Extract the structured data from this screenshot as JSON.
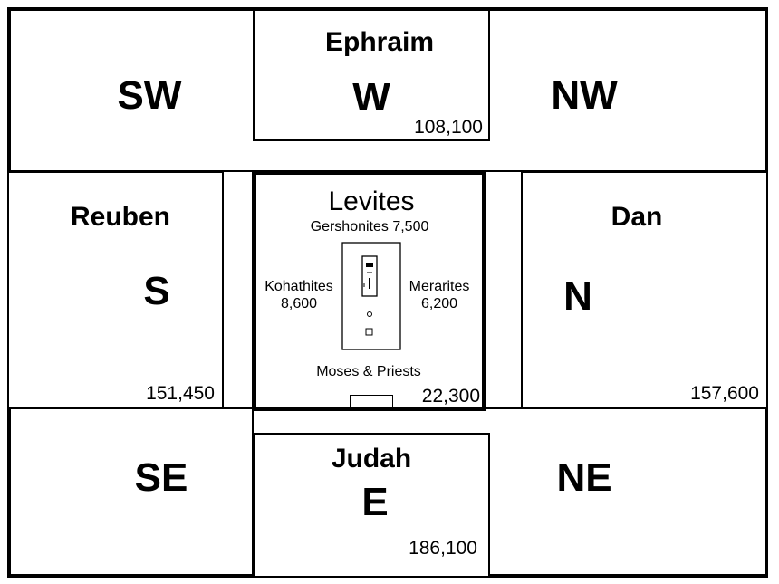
{
  "camp": {
    "corners": {
      "sw": "SW",
      "nw": "NW",
      "se": "SE",
      "ne": "NE"
    },
    "west": {
      "tribe": "Ephraim",
      "direction": "W",
      "count": "108,100"
    },
    "south": {
      "tribe": "Reuben",
      "direction": "S",
      "count": "151,450"
    },
    "north": {
      "tribe": "Dan",
      "direction": "N",
      "count": "157,600"
    },
    "east": {
      "tribe": "Judah",
      "direction": "E",
      "count": "186,100"
    },
    "levites": {
      "title": "Levites",
      "gershonites": "Gershonites 7,500",
      "kohathites_name": "Kohathites",
      "kohathites_count": "8,600",
      "merarites_name": "Merarites",
      "merarites_count": "6,200",
      "moses_priests": "Moses & Priests",
      "count": "22,300"
    }
  }
}
